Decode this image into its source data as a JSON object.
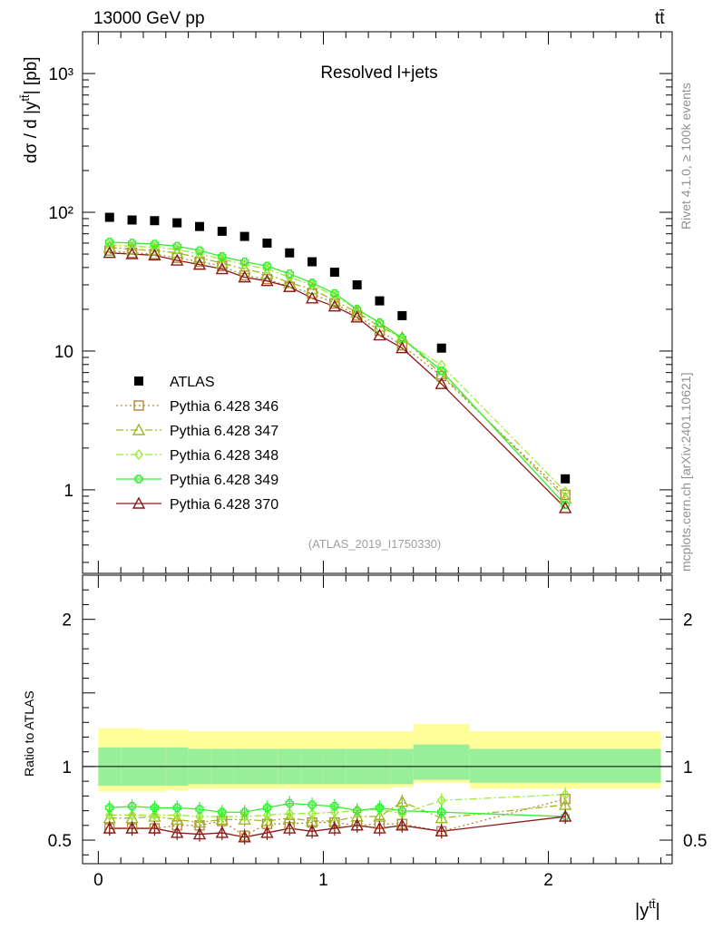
{
  "header": {
    "energy_label": "13000 GeV pp",
    "process_label": "tt̄"
  },
  "side_labels": {
    "rivet": "Rivet 4.1.0, ≥ 100k events",
    "mcplots": "mcplots.cern.ch [arXiv:2401.10621]"
  },
  "chart_data": [
    {
      "type": "scatter",
      "panel": "main",
      "title": "Resolved l+jets",
      "analysis_id": "(ATLAS_2019_I1750330)",
      "xlabel": "|y^{tt̄}|",
      "ylabel": "dσ / d |y^{tt̄}| [pb]",
      "yscale": "log",
      "xlim": [
        -0.07,
        2.55
      ],
      "ylim": [
        0.25,
        2000
      ],
      "x_ticks": [
        "0",
        "1",
        "2"
      ],
      "y_ticks": [
        {
          "value": 1,
          "label": "1"
        },
        {
          "value": 10,
          "label": "10"
        },
        {
          "value": 100,
          "label": "10²"
        },
        {
          "value": 1000,
          "label": "10³"
        }
      ],
      "x": [
        0.05,
        0.15,
        0.25,
        0.35,
        0.45,
        0.55,
        0.65,
        0.75,
        0.85,
        0.95,
        1.05,
        1.15,
        1.25,
        1.35,
        1.525,
        2.075
      ],
      "series": [
        {
          "name": "ATLAS",
          "color": "#000000",
          "marker": "square",
          "line": "none",
          "values": [
            92,
            88,
            87,
            84,
            79,
            73,
            67,
            60,
            51,
            44,
            37,
            30,
            23,
            18,
            10.5,
            1.2
          ]
        },
        {
          "name": "Pythia 6.428 346",
          "color": "#b8863b",
          "marker": "open-square",
          "line": "dotted",
          "values": [
            53,
            51,
            50,
            47,
            44,
            41,
            35,
            33,
            29,
            26,
            22,
            18,
            14,
            11,
            6.6,
            0.92
          ]
        },
        {
          "name": "Pythia 6.428 347",
          "color": "#9dba25",
          "marker": "open-triangle",
          "line": "dashdot",
          "values": [
            56,
            54,
            53,
            51,
            47,
            43,
            39,
            36,
            31,
            28,
            23,
            19,
            15,
            12.5,
            6.8,
            0.87
          ]
        },
        {
          "name": "Pythia 6.428 348",
          "color": "#99ee33",
          "marker": "open-diamond",
          "line": "dashdot",
          "values": [
            58,
            57,
            56,
            54,
            50,
            46,
            42,
            39,
            34,
            30,
            25,
            20,
            16,
            12,
            7.9,
            0.97
          ]
        },
        {
          "name": "Pythia 6.428 349",
          "color": "#33ee33",
          "marker": "open-cross",
          "line": "solid",
          "values": [
            61,
            60,
            59,
            57,
            53,
            48,
            44,
            41,
            36,
            31,
            26,
            20,
            16,
            12.4,
            7.2,
            0.78
          ]
        },
        {
          "name": "Pythia 6.428 370",
          "color": "#8b1a1a",
          "marker": "open-triangle",
          "line": "solid",
          "values": [
            51,
            50,
            49,
            45,
            42,
            39,
            34,
            32,
            29,
            24,
            21,
            17.5,
            13,
            10.5,
            5.8,
            0.74
          ]
        }
      ]
    },
    {
      "type": "line",
      "panel": "ratio",
      "ylabel": "Ratio to ATLAS",
      "ylim": [
        0.34,
        2.3
      ],
      "y_ticks": [
        {
          "value": 0.5,
          "label": "0.5"
        },
        {
          "value": 1,
          "label": "1"
        },
        {
          "value": 2,
          "label": "2"
        }
      ],
      "x_ticks": [
        "0",
        "1",
        "2"
      ],
      "uncertainty_bands": {
        "bins": [
          0,
          0.1,
          0.2,
          0.3,
          0.4,
          0.5,
          0.6,
          0.7,
          0.8,
          0.9,
          1.0,
          1.1,
          1.2,
          1.3,
          1.4,
          1.65,
          2.5
        ],
        "inner_lo": [
          0.87,
          0.87,
          0.87,
          0.87,
          0.88,
          0.88,
          0.88,
          0.88,
          0.88,
          0.88,
          0.88,
          0.88,
          0.88,
          0.88,
          0.91,
          0.89
        ],
        "inner_hi": [
          1.13,
          1.13,
          1.13,
          1.13,
          1.12,
          1.12,
          1.12,
          1.12,
          1.12,
          1.12,
          1.12,
          1.12,
          1.12,
          1.12,
          1.15,
          1.12
        ],
        "outer_lo": [
          0.83,
          0.83,
          0.83,
          0.84,
          0.85,
          0.85,
          0.85,
          0.85,
          0.85,
          0.85,
          0.85,
          0.85,
          0.85,
          0.86,
          0.89,
          0.85
        ],
        "outer_hi": [
          1.26,
          1.26,
          1.25,
          1.25,
          1.24,
          1.24,
          1.24,
          1.24,
          1.24,
          1.24,
          1.24,
          1.24,
          1.24,
          1.24,
          1.29,
          1.24
        ],
        "inner_color": "#99ee99",
        "outer_color": "#ffff99"
      },
      "series": [
        {
          "name": "Pythia 6.428 346",
          "color": "#b8863b",
          "values": [
            0.58,
            0.58,
            0.58,
            0.6,
            0.6,
            0.63,
            0.53,
            0.61,
            0.61,
            0.62,
            0.62,
            0.6,
            0.61,
            0.61,
            0.56,
            0.78
          ]
        },
        {
          "name": "Pythia 6.428 347",
          "color": "#9dba25",
          "values": [
            0.65,
            0.65,
            0.66,
            0.64,
            0.62,
            0.64,
            0.64,
            0.63,
            0.65,
            0.63,
            0.63,
            0.66,
            0.66,
            0.76,
            0.65,
            0.74
          ]
        },
        {
          "name": "Pythia 6.428 348",
          "color": "#99ee33",
          "values": [
            0.67,
            0.67,
            0.67,
            0.67,
            0.66,
            0.66,
            0.66,
            0.67,
            0.68,
            0.68,
            0.69,
            0.7,
            0.71,
            0.68,
            0.77,
            0.81
          ]
        },
        {
          "name": "Pythia 6.428 349",
          "color": "#33ee33",
          "values": [
            0.72,
            0.73,
            0.72,
            0.72,
            0.71,
            0.69,
            0.69,
            0.72,
            0.75,
            0.74,
            0.73,
            0.7,
            0.72,
            0.7,
            0.69,
            0.66
          ]
        },
        {
          "name": "Pythia 6.428 370",
          "color": "#8b1a1a",
          "values": [
            0.58,
            0.58,
            0.58,
            0.55,
            0.54,
            0.55,
            0.52,
            0.55,
            0.58,
            0.56,
            0.58,
            0.6,
            0.58,
            0.6,
            0.56,
            0.66
          ]
        }
      ]
    }
  ]
}
